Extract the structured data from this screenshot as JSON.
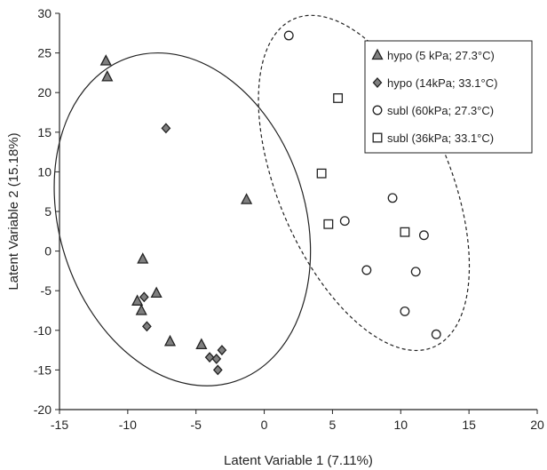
{
  "chart_data": {
    "type": "scatter",
    "title": "",
    "xlabel": "Latent Variable 1 (7.11%)",
    "ylabel": "Latent Variable 2 (15.18%)",
    "xlim": [
      -15,
      20
    ],
    "ylim": [
      -20,
      30
    ],
    "xticks": [
      -15,
      -10,
      -5,
      0,
      5,
      10,
      15,
      20
    ],
    "yticks": [
      -20,
      -15,
      -10,
      -5,
      0,
      5,
      10,
      15,
      20,
      25,
      30
    ],
    "grid": false,
    "legend_position": "top-right",
    "series": [
      {
        "name": "hypo (5 kPa; 27.3°C)",
        "marker": "triangle",
        "color": "#7f7f7f",
        "points": [
          {
            "x": -11.6,
            "y": 24.0
          },
          {
            "x": -11.5,
            "y": 22.0
          },
          {
            "x": -1.3,
            "y": 6.5
          },
          {
            "x": -8.9,
            "y": -1.0
          },
          {
            "x": -9.3,
            "y": -6.3
          },
          {
            "x": -7.9,
            "y": -5.3
          },
          {
            "x": -9.0,
            "y": -7.5
          },
          {
            "x": -6.9,
            "y": -11.4
          },
          {
            "x": -4.6,
            "y": -11.8
          }
        ]
      },
      {
        "name": "hypo (14kPa; 33.1°C)",
        "marker": "diamond",
        "color": "#7f7f7f",
        "points": [
          {
            "x": -7.2,
            "y": 15.5
          },
          {
            "x": -8.8,
            "y": -5.8
          },
          {
            "x": -8.6,
            "y": -9.5
          },
          {
            "x": -4.0,
            "y": -13.4
          },
          {
            "x": -3.5,
            "y": -13.6
          },
          {
            "x": -3.1,
            "y": -12.5
          },
          {
            "x": -3.4,
            "y": -15.0
          }
        ]
      },
      {
        "name": "subl (60kPa; 27.3°C)",
        "marker": "circle",
        "color": "#ffffff",
        "points": [
          {
            "x": 1.8,
            "y": 27.2
          },
          {
            "x": 5.9,
            "y": 3.8
          },
          {
            "x": 9.4,
            "y": 6.7
          },
          {
            "x": 11.7,
            "y": 2.0
          },
          {
            "x": 7.5,
            "y": -2.4
          },
          {
            "x": 11.1,
            "y": -2.6
          },
          {
            "x": 10.3,
            "y": -7.6
          },
          {
            "x": 12.6,
            "y": -10.5
          }
        ]
      },
      {
        "name": "subl (36kPa; 33.1°C)",
        "marker": "square",
        "color": "#ffffff",
        "points": [
          {
            "x": 5.4,
            "y": 19.3
          },
          {
            "x": 4.2,
            "y": 9.8
          },
          {
            "x": 4.7,
            "y": 3.4
          },
          {
            "x": 10.3,
            "y": 2.4
          }
        ]
      }
    ],
    "ellipses": [
      {
        "cx": -6.0,
        "cy": 4.0,
        "rx": 9.0,
        "ry": 21.5,
        "rotation_deg": 18,
        "style": "solid"
      },
      {
        "cx": 7.3,
        "cy": 8.6,
        "rx": 6.3,
        "ry": 22.5,
        "rotation_deg": 23,
        "style": "dashed"
      }
    ]
  }
}
